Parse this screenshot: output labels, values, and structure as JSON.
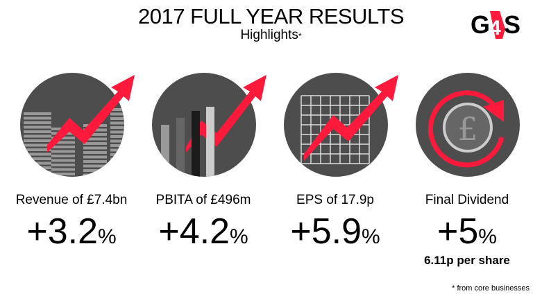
{
  "header": {
    "title": "2017 FULL YEAR RESULTS",
    "subtitle": "Highlights",
    "subtitle_mark": "*",
    "logo_text": "G4S"
  },
  "colors": {
    "accent": "#ff1a3c",
    "circle": "#4d4d4d"
  },
  "metrics": [
    {
      "label": "Revenue of £7.4bn",
      "value": "+3.2",
      "unit": "%",
      "icon": "rising-bar-chart-icon"
    },
    {
      "label": "PBITA of £496m",
      "value": "+4.2",
      "unit": "%",
      "icon": "bar-chart-arrow-icon"
    },
    {
      "label": "EPS of 17.9p",
      "value": "+5.9",
      "unit": "%",
      "icon": "grid-arrow-icon"
    },
    {
      "label": "Final Dividend",
      "value": "+5",
      "unit": "%",
      "sub": "6.11p per share",
      "icon": "pound-cycle-icon"
    }
  ],
  "footnote": "* from core businesses"
}
